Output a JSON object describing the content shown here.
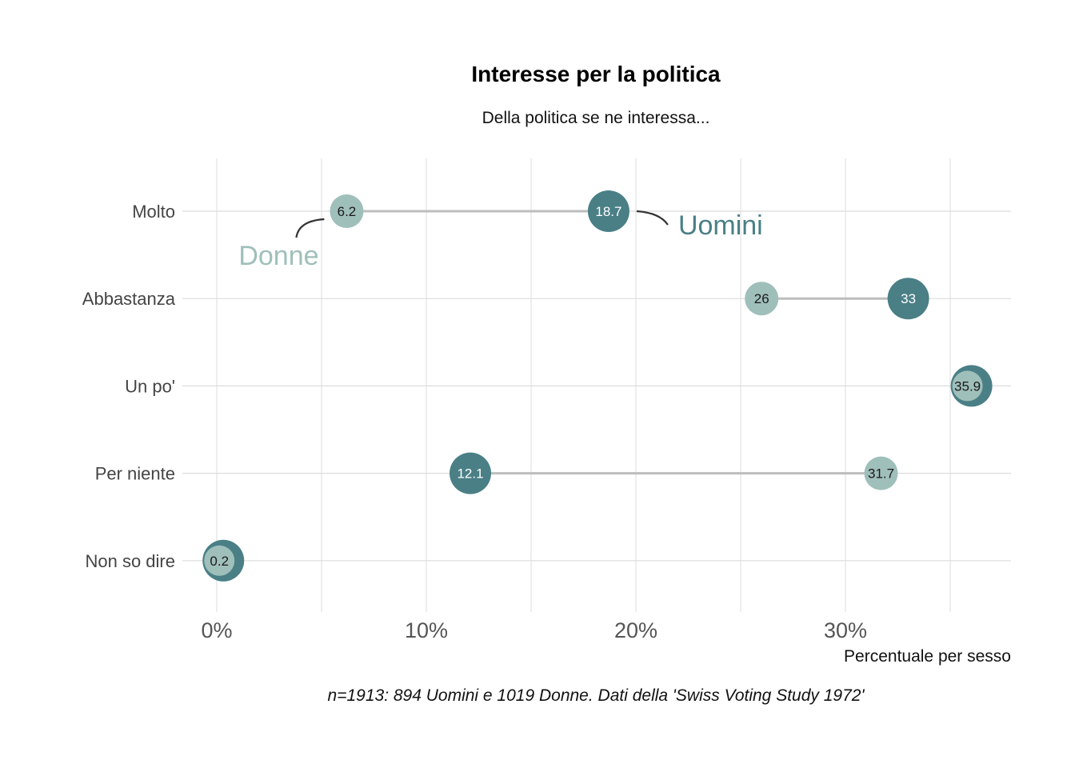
{
  "chart_data": {
    "type": "scatter",
    "subtype": "dumbbell",
    "title": "Interesse per la politica",
    "subtitle": "Della politica se ne interessa...",
    "xlabel": "Percentuale per sesso",
    "ylabel": "",
    "caption": "n=1913: 894 Uomini e 1019 Donne. Dati della 'Swiss Voting Study 1972'",
    "categories": [
      "Molto",
      "Abbastanza",
      "Un po'",
      "Per niente",
      "Non so dire"
    ],
    "xlim": [
      -1,
      37.9
    ],
    "x_ticks": [
      0,
      10,
      20,
      30
    ],
    "x_tick_labels": [
      "0%",
      "10%",
      "20%",
      "30%"
    ],
    "x_minor_gridlines": [
      5,
      15,
      25,
      35
    ],
    "grid": true,
    "series": [
      {
        "name": "Uomini",
        "color": "#4a7f86",
        "values": [
          18.7,
          33,
          35.9,
          12.1,
          0.2
        ],
        "labels": [
          "18.7",
          "33",
          "",
          "12.1",
          ""
        ]
      },
      {
        "name": "Donne",
        "color": "#9fbfba",
        "values": [
          6.2,
          26,
          35.9,
          31.7,
          0.2
        ],
        "labels": [
          "6.2",
          "26",
          "35.9",
          "31.7",
          "0.2"
        ]
      }
    ],
    "legend_placement": "inline annotations on top row",
    "segment_color": "#bdbdbd"
  }
}
